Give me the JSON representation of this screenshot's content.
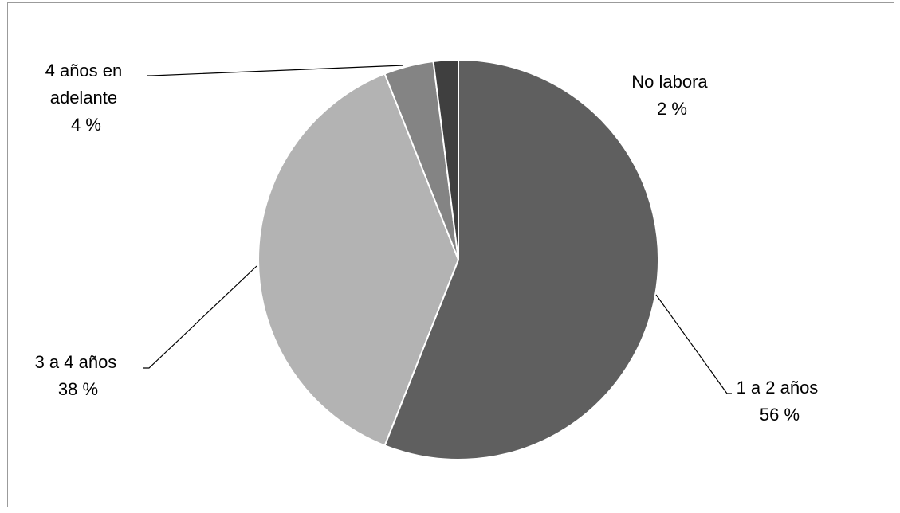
{
  "chart_data": {
    "type": "pie",
    "slices": [
      {
        "name": "1 a 2 años",
        "value": 56,
        "label_lines": [
          "1 a 2 años",
          "56 %"
        ],
        "color": "#5f5f5f"
      },
      {
        "name": "3 a 4 años",
        "value": 38,
        "label_lines": [
          "3 a 4 años",
          "38 %"
        ],
        "color": "#b3b3b3"
      },
      {
        "name": "4 años en adelante",
        "value": 4,
        "label_lines": [
          "4 años en",
          "adelante",
          "4 %"
        ],
        "color": "#848484"
      },
      {
        "name": "No labora",
        "value": 2,
        "label_lines": [
          "No labora",
          "2 %"
        ],
        "color": "#3f3f3f"
      }
    ],
    "start": "12 o'clock",
    "direction": "clockwise",
    "legend": "none"
  }
}
